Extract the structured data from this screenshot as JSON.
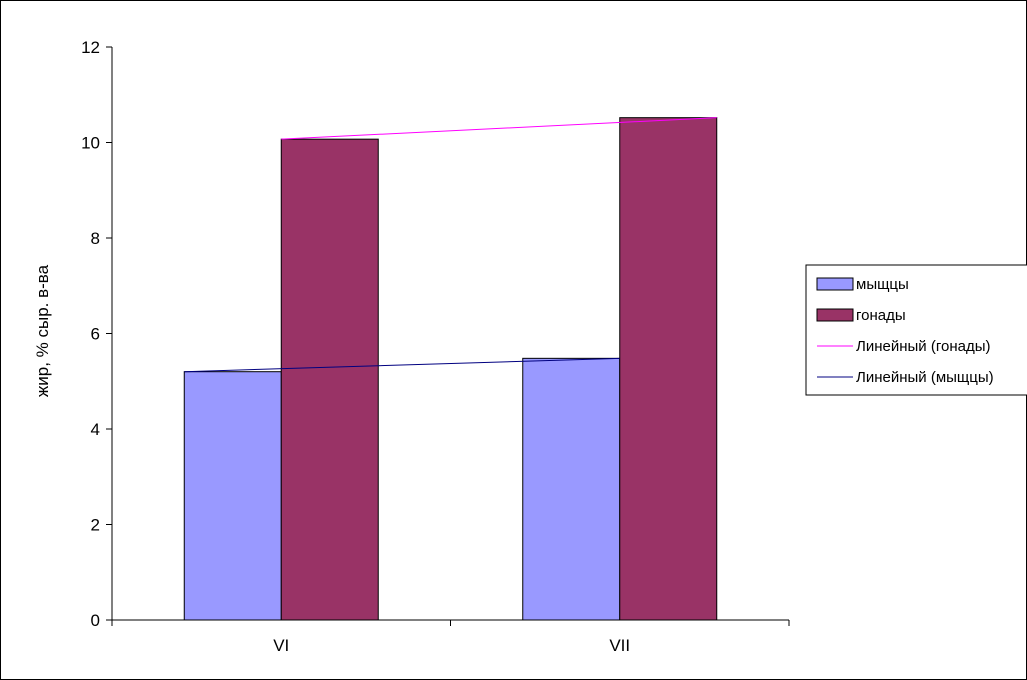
{
  "chart_data": {
    "type": "bar",
    "categories": [
      "VI",
      "VII"
    ],
    "series": [
      {
        "name": "мыщцы",
        "values": [
          5.2,
          5.48
        ],
        "color": "#9999ff"
      },
      {
        "name": "гонады",
        "values": [
          10.07,
          10.52
        ],
        "color": "#993366"
      }
    ],
    "trendlines": [
      {
        "name": "Линейный (гонады)",
        "series": "гонады",
        "values": [
          10.07,
          10.52
        ],
        "color": "#ff00ff"
      },
      {
        "name": "Линейный (мыщцы)",
        "series": "мыщцы",
        "values": [
          5.2,
          5.48
        ],
        "color": "#000080"
      }
    ],
    "ylabel": "жир, % сыр. в-ва",
    "xlabel": "",
    "ylim": [
      0,
      12
    ],
    "yticks": [
      "0",
      "2",
      "4",
      "6",
      "8",
      "10",
      "12"
    ],
    "grid": false,
    "legend_position": "right"
  }
}
